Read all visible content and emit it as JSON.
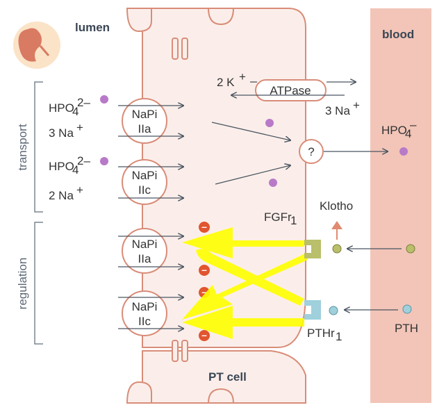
{
  "labels": {
    "lumen": "lumen",
    "blood": "blood",
    "pt_cell": "PT cell",
    "transport": "transport",
    "regulation": "regulation",
    "hpo4_a": "HPO",
    "hpo4_a_sub": "4",
    "hpo4_a_sup": "2–",
    "na3_left": "3 Na",
    "na3_left_sup": "+",
    "hpo4_b": "HPO",
    "hpo4_b_sub": "4",
    "hpo4_b_sup": "2–",
    "na2_left": "2 Na",
    "na2_left_sup": "+",
    "k2": "2 K",
    "k2_sup": "+",
    "atpase": "ATPase",
    "na3_right": "3 Na",
    "na3_right_sup": "+",
    "hpo4_blood": "HPO",
    "hpo4_blood_sub": "4",
    "hpo4_blood_sup": "–",
    "unknown": "?",
    "fgfr": "FGFr",
    "fgfr_sub": "1",
    "klotho": "Klotho",
    "pthr": "PTHr",
    "pthr_sub": "1",
    "pth": "PTH",
    "napi_1_a": "NaPi",
    "napi_1_b": "IIa",
    "napi_2_a": "NaPi",
    "napi_2_b": "IIc",
    "napi_3_a": "NaPi",
    "napi_3_b": "IIa",
    "napi_4_a": "NaPi",
    "napi_4_b": "IIc",
    "minus": "–"
  },
  "colors": {
    "cell_fill": "#fbeeea",
    "cell_stroke": "#d98c78",
    "blood_fill": "#f2c5b8",
    "phosphate": "#b87ac8",
    "fgf": "#b9bf6a",
    "pth": "#9fd0dc",
    "inhibit": "#e1552f",
    "highlight": "#ffff00",
    "arrow": "#4a5560"
  },
  "icons": [
    "kidney-icon"
  ]
}
